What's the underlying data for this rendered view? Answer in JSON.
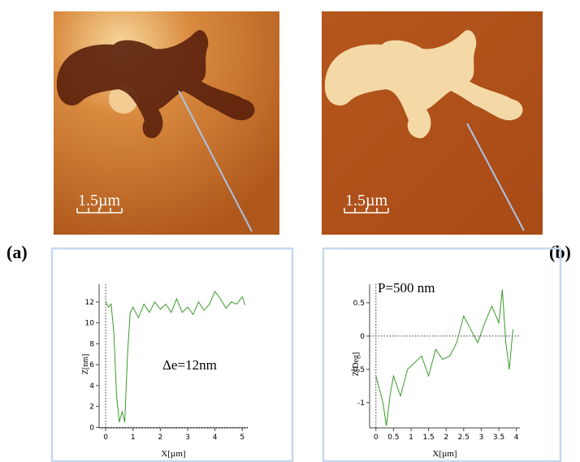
{
  "chart_data": [
    {
      "type": "line",
      "y_label": "Z[nm]",
      "x_label": "X[µm]",
      "annotation": "Δe=12nm",
      "color": "#3a9a2a",
      "x": [
        0,
        0.1,
        0.2,
        0.3,
        0.4,
        0.5,
        0.6,
        0.7,
        0.8,
        0.9,
        1.0,
        1.2,
        1.4,
        1.6,
        1.8,
        2.0,
        2.2,
        2.4,
        2.6,
        2.8,
        3.0,
        3.2,
        3.4,
        3.6,
        3.8,
        4.0,
        4.2,
        4.4,
        4.6,
        4.8,
        5.0,
        5.1
      ],
      "values": [
        12,
        11.5,
        11.8,
        9,
        3,
        0.5,
        1.5,
        0.5,
        7,
        11,
        11.5,
        10.5,
        11.8,
        11,
        12,
        11.3,
        11.8,
        11,
        12.3,
        11,
        11.5,
        10.8,
        12,
        11.2,
        11.8,
        13,
        12.3,
        11.4,
        12,
        11.8,
        12.5,
        11.7
      ],
      "xlim": [
        -0.24,
        5.2
      ],
      "ylim": [
        -0.05,
        13.7
      ],
      "xticks": [
        0,
        1,
        2,
        3,
        4,
        5
      ],
      "yticks": [
        0,
        2,
        4,
        6,
        8,
        10,
        12
      ]
    },
    {
      "type": "line",
      "y_label": "Z[Deg]",
      "x_label": "X[µm]",
      "annotation": "P=500 nm",
      "color": "#3a9a2a",
      "x": [
        0,
        0.1,
        0.2,
        0.3,
        0.4,
        0.5,
        0.7,
        0.9,
        1.1,
        1.3,
        1.5,
        1.7,
        1.9,
        2.1,
        2.3,
        2.5,
        2.7,
        2.9,
        3.1,
        3.3,
        3.5,
        3.6,
        3.7,
        3.8,
        3.9
      ],
      "values": [
        -0.6,
        -0.8,
        -1.0,
        -1.35,
        -0.9,
        -0.6,
        -0.9,
        -0.5,
        -0.4,
        -0.3,
        -0.6,
        -0.2,
        -0.35,
        -0.3,
        -0.1,
        0.3,
        0.1,
        -0.1,
        0.2,
        0.45,
        0.2,
        0.7,
        -0.1,
        -0.5,
        0.1
      ],
      "xlim": [
        -0.18,
        4.1
      ],
      "ylim": [
        -1.38,
        0.78
      ],
      "xticks": [
        0,
        0.5,
        1,
        1.5,
        2,
        2.5,
        3,
        3.5,
        4
      ],
      "yticks": [
        -1,
        -0.5,
        0,
        0.5
      ]
    }
  ],
  "figure": {
    "panels": [
      {
        "label": "(a)",
        "scale_bar": "1.5µm"
      },
      {
        "label": "(b)",
        "scale_bar": "1.5µm"
      }
    ]
  }
}
